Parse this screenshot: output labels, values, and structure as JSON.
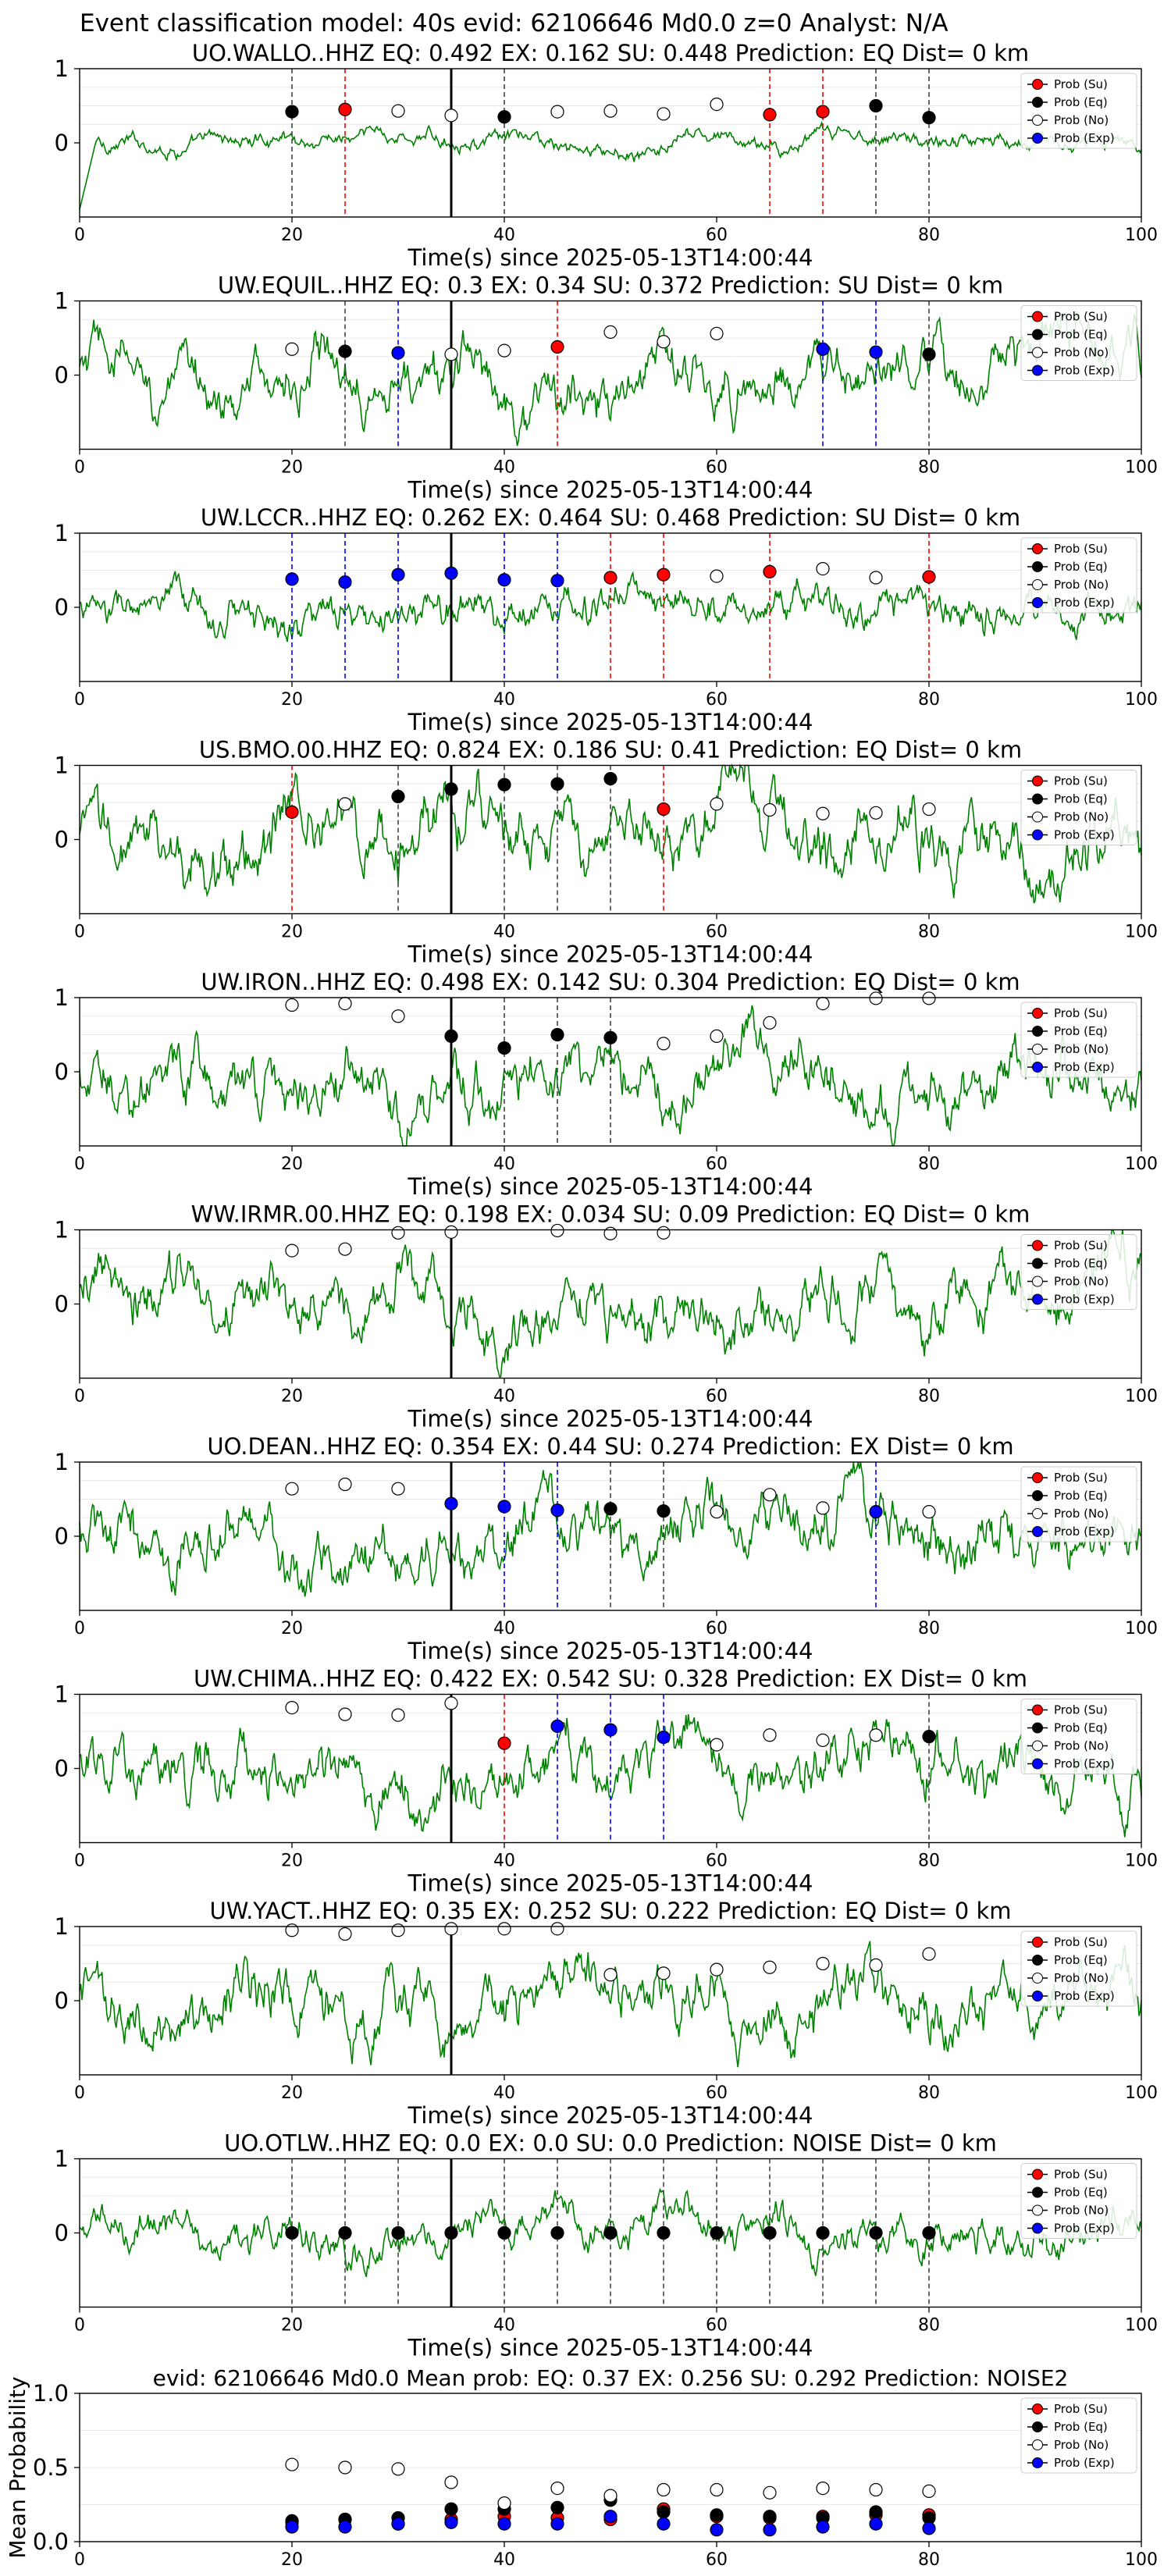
{
  "suptitle": "Event classification model: 40s evid: 62106646 Md0.0 z=0 Analyst: N/A",
  "colors": {
    "trace": "#008000",
    "su": "#ff0000",
    "eq": "#000000",
    "no": "#ffffff",
    "exp": "#0000ff",
    "onset": "#000000"
  },
  "legend_labels": [
    "Prob (Su)",
    "Prob (Eq)",
    "Prob (No)",
    "Prob (Exp)"
  ],
  "chart_data": [
    {
      "type": "scatter",
      "title": "UO.WALLO..HHZ   EQ: 0.492  EX: 0.162  SU: 0.448   Prediction: EQ    Dist= 0 km",
      "xlabel": "Time(s) since 2025-05-13T14:00:44",
      "xlim": [
        0,
        100
      ],
      "ylim": [
        -1,
        1
      ],
      "xticks": [
        0,
        20,
        40,
        60,
        80,
        100
      ],
      "yticks": [
        0,
        1
      ],
      "trace_amp": 0.15,
      "onset": 35,
      "points": [
        {
          "x": 20,
          "y": 0.42,
          "c": "eq"
        },
        {
          "x": 25,
          "y": 0.45,
          "c": "su"
        },
        {
          "x": 30,
          "y": 0.43,
          "c": "no"
        },
        {
          "x": 35,
          "y": 0.37,
          "c": "no"
        },
        {
          "x": 40,
          "y": 0.35,
          "c": "eq"
        },
        {
          "x": 45,
          "y": 0.42,
          "c": "no"
        },
        {
          "x": 50,
          "y": 0.43,
          "c": "no"
        },
        {
          "x": 55,
          "y": 0.39,
          "c": "no"
        },
        {
          "x": 60,
          "y": 0.52,
          "c": "no"
        },
        {
          "x": 65,
          "y": 0.38,
          "c": "su"
        },
        {
          "x": 70,
          "y": 0.42,
          "c": "su"
        },
        {
          "x": 75,
          "y": 0.5,
          "c": "eq"
        },
        {
          "x": 80,
          "y": 0.34,
          "c": "eq"
        }
      ]
    },
    {
      "type": "scatter",
      "title": "UW.EQUIL..HHZ   EQ: 0.3  EX: 0.34  SU: 0.372   Prediction: SU    Dist= 0 km",
      "xlabel": "Time(s) since 2025-05-13T14:00:44",
      "xlim": [
        0,
        100
      ],
      "ylim": [
        -1,
        1
      ],
      "xticks": [
        0,
        20,
        40,
        60,
        80,
        100
      ],
      "yticks": [
        0,
        1
      ],
      "trace_amp": 0.5,
      "onset": 35,
      "points": [
        {
          "x": 20,
          "y": 0.35,
          "c": "no"
        },
        {
          "x": 25,
          "y": 0.32,
          "c": "eq"
        },
        {
          "x": 30,
          "y": 0.3,
          "c": "exp"
        },
        {
          "x": 35,
          "y": 0.28,
          "c": "no"
        },
        {
          "x": 40,
          "y": 0.33,
          "c": "no"
        },
        {
          "x": 45,
          "y": 0.38,
          "c": "su"
        },
        {
          "x": 50,
          "y": 0.58,
          "c": "no"
        },
        {
          "x": 55,
          "y": 0.45,
          "c": "no"
        },
        {
          "x": 60,
          "y": 0.56,
          "c": "no"
        },
        {
          "x": 70,
          "y": 0.35,
          "c": "exp"
        },
        {
          "x": 75,
          "y": 0.31,
          "c": "exp"
        },
        {
          "x": 80,
          "y": 0.28,
          "c": "eq"
        }
      ]
    },
    {
      "type": "scatter",
      "title": "UW.LCCR..HHZ   EQ: 0.262  EX: 0.464  SU: 0.468   Prediction: SU    Dist= 0 km",
      "xlabel": "Time(s) since 2025-05-13T14:00:44",
      "xlim": [
        0,
        100
      ],
      "ylim": [
        -1,
        1
      ],
      "xticks": [
        0,
        20,
        40,
        60,
        80,
        100
      ],
      "yticks": [
        0,
        1
      ],
      "trace_amp": 0.35,
      "onset": 35,
      "points": [
        {
          "x": 20,
          "y": 0.38,
          "c": "exp"
        },
        {
          "x": 25,
          "y": 0.34,
          "c": "exp"
        },
        {
          "x": 30,
          "y": 0.44,
          "c": "exp"
        },
        {
          "x": 35,
          "y": 0.46,
          "c": "exp"
        },
        {
          "x": 40,
          "y": 0.37,
          "c": "exp"
        },
        {
          "x": 45,
          "y": 0.36,
          "c": "exp"
        },
        {
          "x": 50,
          "y": 0.4,
          "c": "su"
        },
        {
          "x": 55,
          "y": 0.44,
          "c": "su"
        },
        {
          "x": 60,
          "y": 0.42,
          "c": "no"
        },
        {
          "x": 65,
          "y": 0.48,
          "c": "su"
        },
        {
          "x": 70,
          "y": 0.52,
          "c": "no"
        },
        {
          "x": 75,
          "y": 0.4,
          "c": "no"
        },
        {
          "x": 80,
          "y": 0.41,
          "c": "su"
        }
      ]
    },
    {
      "type": "scatter",
      "title": "US.BMO.00.HHZ   EQ: 0.824  EX: 0.186  SU: 0.41   Prediction: EQ    Dist= 0 km",
      "xlabel": "Time(s) since 2025-05-13T14:00:44",
      "xlim": [
        0,
        100
      ],
      "ylim": [
        -1,
        1
      ],
      "xticks": [
        0,
        20,
        40,
        60,
        80,
        100
      ],
      "yticks": [
        0,
        1
      ],
      "trace_amp": 0.6,
      "onset": 35,
      "points": [
        {
          "x": 20,
          "y": 0.37,
          "c": "su"
        },
        {
          "x": 25,
          "y": 0.48,
          "c": "no"
        },
        {
          "x": 30,
          "y": 0.58,
          "c": "eq"
        },
        {
          "x": 35,
          "y": 0.68,
          "c": "eq"
        },
        {
          "x": 40,
          "y": 0.74,
          "c": "eq"
        },
        {
          "x": 45,
          "y": 0.75,
          "c": "eq"
        },
        {
          "x": 50,
          "y": 0.82,
          "c": "eq"
        },
        {
          "x": 55,
          "y": 0.41,
          "c": "su"
        },
        {
          "x": 60,
          "y": 0.48,
          "c": "no"
        },
        {
          "x": 65,
          "y": 0.4,
          "c": "no"
        },
        {
          "x": 70,
          "y": 0.35,
          "c": "no"
        },
        {
          "x": 75,
          "y": 0.36,
          "c": "no"
        },
        {
          "x": 80,
          "y": 0.41,
          "c": "no"
        }
      ]
    },
    {
      "type": "scatter",
      "title": "UW.IRON..HHZ   EQ: 0.498  EX: 0.142  SU: 0.304   Prediction: EQ    Dist= 0 km",
      "xlabel": "Time(s) since 2025-05-13T14:00:44",
      "xlim": [
        0,
        100
      ],
      "ylim": [
        -1,
        1
      ],
      "xticks": [
        0,
        20,
        40,
        60,
        80,
        100
      ],
      "yticks": [
        0,
        1
      ],
      "trace_amp": 0.55,
      "onset": 35,
      "points": [
        {
          "x": 20,
          "y": 0.9,
          "c": "no"
        },
        {
          "x": 25,
          "y": 0.92,
          "c": "no"
        },
        {
          "x": 30,
          "y": 0.75,
          "c": "no"
        },
        {
          "x": 35,
          "y": 0.48,
          "c": "eq"
        },
        {
          "x": 40,
          "y": 0.32,
          "c": "eq"
        },
        {
          "x": 45,
          "y": 0.5,
          "c": "eq"
        },
        {
          "x": 50,
          "y": 0.46,
          "c": "eq"
        },
        {
          "x": 55,
          "y": 0.38,
          "c": "no"
        },
        {
          "x": 60,
          "y": 0.48,
          "c": "no"
        },
        {
          "x": 65,
          "y": 0.66,
          "c": "no"
        },
        {
          "x": 70,
          "y": 0.92,
          "c": "no"
        },
        {
          "x": 75,
          "y": 0.99,
          "c": "no"
        },
        {
          "x": 80,
          "y": 0.99,
          "c": "no"
        }
      ]
    },
    {
      "type": "scatter",
      "title": "WW.IRMR.00.HHZ   EQ: 0.198  EX: 0.034  SU: 0.09   Prediction: EQ    Dist= 0 km",
      "xlabel": "Time(s) since 2025-05-13T14:00:44",
      "xlim": [
        0,
        100
      ],
      "ylim": [
        -1,
        1
      ],
      "xticks": [
        0,
        20,
        40,
        60,
        80,
        100
      ],
      "yticks": [
        0,
        1
      ],
      "trace_amp": 0.55,
      "onset": 35,
      "points": [
        {
          "x": 20,
          "y": 0.72,
          "c": "no"
        },
        {
          "x": 25,
          "y": 0.74,
          "c": "no"
        },
        {
          "x": 30,
          "y": 0.96,
          "c": "no"
        },
        {
          "x": 35,
          "y": 0.97,
          "c": "no"
        },
        {
          "x": 45,
          "y": 0.99,
          "c": "no"
        },
        {
          "x": 50,
          "y": 0.95,
          "c": "no"
        },
        {
          "x": 55,
          "y": 0.96,
          "c": "no"
        }
      ]
    },
    {
      "type": "scatter",
      "title": "UO.DEAN..HHZ   EQ: 0.354  EX: 0.44  SU: 0.274   Prediction: EX    Dist= 0 km",
      "xlabel": "Time(s) since 2025-05-13T14:00:44",
      "xlim": [
        0,
        100
      ],
      "ylim": [
        -1,
        1
      ],
      "xticks": [
        0,
        20,
        40,
        60,
        80,
        100
      ],
      "yticks": [
        0,
        1
      ],
      "trace_amp": 0.55,
      "onset": 35,
      "points": [
        {
          "x": 20,
          "y": 0.64,
          "c": "no"
        },
        {
          "x": 25,
          "y": 0.7,
          "c": "no"
        },
        {
          "x": 30,
          "y": 0.64,
          "c": "no"
        },
        {
          "x": 35,
          "y": 0.44,
          "c": "exp"
        },
        {
          "x": 40,
          "y": 0.4,
          "c": "exp"
        },
        {
          "x": 45,
          "y": 0.35,
          "c": "exp"
        },
        {
          "x": 50,
          "y": 0.37,
          "c": "eq"
        },
        {
          "x": 55,
          "y": 0.34,
          "c": "eq"
        },
        {
          "x": 60,
          "y": 0.33,
          "c": "no"
        },
        {
          "x": 65,
          "y": 0.56,
          "c": "no"
        },
        {
          "x": 70,
          "y": 0.38,
          "c": "no"
        },
        {
          "x": 75,
          "y": 0.33,
          "c": "exp"
        },
        {
          "x": 80,
          "y": 0.33,
          "c": "no"
        }
      ]
    },
    {
      "type": "scatter",
      "title": "UW.CHIMA..HHZ   EQ: 0.422  EX: 0.542  SU: 0.328   Prediction: EX    Dist= 0 km",
      "xlabel": "Time(s) since 2025-05-13T14:00:44",
      "xlim": [
        0,
        100
      ],
      "ylim": [
        -1,
        1
      ],
      "xticks": [
        0,
        20,
        40,
        60,
        80,
        100
      ],
      "yticks": [
        0,
        1
      ],
      "trace_amp": 0.55,
      "onset": 35,
      "points": [
        {
          "x": 20,
          "y": 0.82,
          "c": "no"
        },
        {
          "x": 25,
          "y": 0.73,
          "c": "no"
        },
        {
          "x": 30,
          "y": 0.72,
          "c": "no"
        },
        {
          "x": 35,
          "y": 0.88,
          "c": "no"
        },
        {
          "x": 40,
          "y": 0.34,
          "c": "su"
        },
        {
          "x": 45,
          "y": 0.57,
          "c": "exp"
        },
        {
          "x": 50,
          "y": 0.52,
          "c": "exp"
        },
        {
          "x": 55,
          "y": 0.42,
          "c": "exp"
        },
        {
          "x": 60,
          "y": 0.32,
          "c": "no"
        },
        {
          "x": 65,
          "y": 0.45,
          "c": "no"
        },
        {
          "x": 70,
          "y": 0.38,
          "c": "no"
        },
        {
          "x": 75,
          "y": 0.45,
          "c": "no"
        },
        {
          "x": 80,
          "y": 0.43,
          "c": "eq"
        }
      ]
    },
    {
      "type": "scatter",
      "title": "UW.YACT..HHZ   EQ: 0.35  EX: 0.252  SU: 0.222   Prediction: EQ    Dist= 0 km",
      "xlabel": "Time(s) since 2025-05-13T14:00:44",
      "xlim": [
        0,
        100
      ],
      "ylim": [
        -1,
        1
      ],
      "xticks": [
        0,
        20,
        40,
        60,
        80,
        100
      ],
      "yticks": [
        0,
        1
      ],
      "trace_amp": 0.55,
      "onset": 35,
      "points": [
        {
          "x": 20,
          "y": 0.95,
          "c": "no"
        },
        {
          "x": 25,
          "y": 0.9,
          "c": "no"
        },
        {
          "x": 30,
          "y": 0.95,
          "c": "no"
        },
        {
          "x": 35,
          "y": 0.97,
          "c": "no"
        },
        {
          "x": 40,
          "y": 0.97,
          "c": "no"
        },
        {
          "x": 45,
          "y": 0.97,
          "c": "no"
        },
        {
          "x": 50,
          "y": 0.35,
          "c": "no"
        },
        {
          "x": 55,
          "y": 0.37,
          "c": "no"
        },
        {
          "x": 60,
          "y": 0.42,
          "c": "no"
        },
        {
          "x": 65,
          "y": 0.45,
          "c": "no"
        },
        {
          "x": 70,
          "y": 0.5,
          "c": "no"
        },
        {
          "x": 75,
          "y": 0.48,
          "c": "no"
        },
        {
          "x": 80,
          "y": 0.63,
          "c": "no"
        }
      ]
    },
    {
      "type": "scatter",
      "title": "UO.OTLW..HHZ   EQ: 0.0  EX: 0.0  SU: 0.0   Prediction: NOISE    Dist= 0 km",
      "xlabel": "Time(s) since 2025-05-13T14:00:44",
      "xlim": [
        0,
        100
      ],
      "ylim": [
        -1,
        1
      ],
      "xticks": [
        0,
        20,
        40,
        60,
        80,
        100
      ],
      "yticks": [
        0,
        1
      ],
      "trace_amp": 0.35,
      "onset": 35,
      "points": [
        {
          "x": 20,
          "y": 0.0,
          "c": "eq"
        },
        {
          "x": 25,
          "y": 0.0,
          "c": "eq"
        },
        {
          "x": 30,
          "y": 0.0,
          "c": "eq"
        },
        {
          "x": 35,
          "y": 0.0,
          "c": "eq"
        },
        {
          "x": 40,
          "y": 0.0,
          "c": "eq"
        },
        {
          "x": 45,
          "y": 0.0,
          "c": "eq"
        },
        {
          "x": 50,
          "y": 0.0,
          "c": "eq"
        },
        {
          "x": 55,
          "y": 0.0,
          "c": "eq"
        },
        {
          "x": 60,
          "y": 0.0,
          "c": "eq"
        },
        {
          "x": 65,
          "y": 0.0,
          "c": "eq"
        },
        {
          "x": 70,
          "y": 0.0,
          "c": "eq"
        },
        {
          "x": 75,
          "y": 0.0,
          "c": "eq"
        },
        {
          "x": 80,
          "y": 0.0,
          "c": "eq"
        }
      ]
    },
    {
      "type": "scatter",
      "title": "evid: 62106646  Md0.0   Mean prob:   EQ: 0.37  EX: 0.256  SU: 0.292   Prediction: NOISE2",
      "ylabel": "Mean Probability",
      "xlim": [
        0,
        100
      ],
      "ylim": [
        0,
        1
      ],
      "xticks": [
        0,
        20,
        40,
        60,
        80,
        100
      ],
      "yticks": [
        0,
        0.5,
        1.0
      ],
      "ytick_labels": [
        "0.0",
        "0.5",
        "1.0"
      ],
      "series": [
        {
          "c": "su",
          "x": [
            20,
            25,
            30,
            35,
            40,
            45,
            50,
            55,
            60,
            65,
            70,
            75,
            80
          ],
          "y": [
            0.13,
            0.15,
            0.12,
            0.15,
            0.17,
            0.16,
            0.15,
            0.22,
            0.17,
            0.16,
            0.17,
            0.18,
            0.18
          ]
        },
        {
          "c": "eq",
          "x": [
            20,
            25,
            30,
            35,
            40,
            45,
            50,
            55,
            60,
            65,
            70,
            75,
            80
          ],
          "y": [
            0.14,
            0.15,
            0.16,
            0.22,
            0.22,
            0.23,
            0.28,
            0.2,
            0.18,
            0.17,
            0.16,
            0.2,
            0.16
          ]
        },
        {
          "c": "no",
          "x": [
            20,
            25,
            30,
            35,
            40,
            45,
            50,
            55,
            60,
            65,
            70,
            75,
            80
          ],
          "y": [
            0.52,
            0.5,
            0.49,
            0.4,
            0.26,
            0.36,
            0.31,
            0.35,
            0.35,
            0.33,
            0.36,
            0.35,
            0.34
          ]
        },
        {
          "c": "exp",
          "x": [
            20,
            25,
            30,
            35,
            40,
            45,
            50,
            55,
            60,
            65,
            70,
            75,
            80
          ],
          "y": [
            0.1,
            0.1,
            0.12,
            0.13,
            0.12,
            0.12,
            0.17,
            0.12,
            0.08,
            0.08,
            0.1,
            0.12,
            0.09
          ]
        }
      ]
    }
  ]
}
